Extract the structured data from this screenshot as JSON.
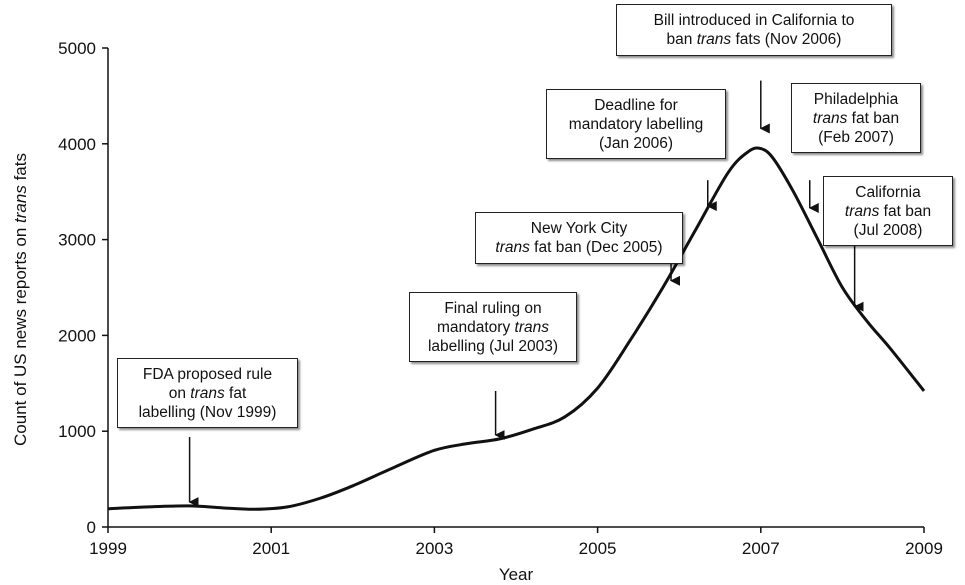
{
  "chart_data": {
    "type": "line",
    "xlabel": "Year",
    "ylabel_parts": [
      "Count of US news reports on ",
      "trans",
      " fats"
    ],
    "xlim": [
      1999,
      2009
    ],
    "ylim": [
      0,
      5000
    ],
    "x_ticks": [
      1999,
      2001,
      2003,
      2005,
      2007,
      2009
    ],
    "y_ticks": [
      0,
      1000,
      2000,
      3000,
      4000,
      5000
    ],
    "grid": false,
    "legend": "none",
    "line_color": "#111111",
    "series": [
      {
        "x": [
          1999,
          1999.5,
          2000,
          2000.4,
          2000.8,
          2001.2,
          2001.6,
          2002,
          2002.5,
          2003,
          2003.4,
          2003.8,
          2004.2,
          2004.6,
          2005,
          2005.4,
          2005.8,
          2006.2,
          2006.6,
          2006.85,
          2007,
          2007.15,
          2007.4,
          2007.7,
          2008,
          2008.3,
          2008.6,
          2009
        ],
        "y": [
          190,
          210,
          220,
          200,
          185,
          210,
          300,
          430,
          620,
          800,
          870,
          920,
          1020,
          1150,
          1450,
          1950,
          2500,
          3100,
          3700,
          3920,
          3950,
          3850,
          3500,
          3000,
          2500,
          2150,
          1850,
          1420
        ]
      }
    ],
    "annotations": [
      {
        "id": "fda-1999",
        "lines": [
          [
            {
              "t": "FDA proposed rule"
            }
          ],
          [
            {
              "t": "on "
            },
            {
              "t": "trans",
              "i": true
            },
            {
              "t": " fat"
            }
          ],
          [
            {
              "t": "labelling (Nov 1999)"
            }
          ]
        ],
        "arrow_x": 2000.0,
        "arrow_top_y": 940,
        "arrow_tip_y": 260
      },
      {
        "id": "final-2003",
        "lines": [
          [
            {
              "t": "Final ruling on"
            }
          ],
          [
            {
              "t": "mandatory "
            },
            {
              "t": "trans",
              "i": true
            }
          ],
          [
            {
              "t": "labelling (Jul 2003)"
            }
          ]
        ],
        "arrow_x": 2003.75,
        "arrow_top_y": 1420,
        "arrow_tip_y": 960
      },
      {
        "id": "nyc-2005",
        "lines": [
          [
            {
              "t": "New York City"
            }
          ],
          [
            {
              "t": "trans",
              "i": true
            },
            {
              "t": " fat ban (Dec 2005)"
            }
          ]
        ],
        "arrow_x": 2005.9,
        "arrow_top_y": 2940,
        "arrow_tip_y": 2570
      },
      {
        "id": "deadline-2006",
        "lines": [
          [
            {
              "t": "Deadline for"
            }
          ],
          [
            {
              "t": "mandatory labelling"
            }
          ],
          [
            {
              "t": "(Jan 2006)"
            }
          ]
        ],
        "arrow_x": 2006.35,
        "arrow_top_y": 3620,
        "arrow_tip_y": 3350
      },
      {
        "id": "calbill-2006",
        "lines": [
          [
            {
              "t": "Bill introduced in California to"
            }
          ],
          [
            {
              "t": "ban "
            },
            {
              "t": "trans",
              "i": true
            },
            {
              "t": " fats (Nov 2006)"
            }
          ]
        ],
        "arrow_x": 2007.0,
        "arrow_top_y": 4660,
        "arrow_tip_y": 4160
      },
      {
        "id": "philly-2007",
        "lines": [
          [
            {
              "t": "Philadelphia"
            }
          ],
          [
            {
              "t": "trans",
              "i": true
            },
            {
              "t": " fat ban"
            }
          ],
          [
            {
              "t": "(Feb 2007)"
            }
          ]
        ],
        "arrow_x": 2007.6,
        "arrow_top_y": 3620,
        "arrow_tip_y": 3330
      },
      {
        "id": "cal-2008",
        "lines": [
          [
            {
              "t": "California"
            }
          ],
          [
            {
              "t": "trans",
              "i": true
            },
            {
              "t": " fat ban"
            }
          ],
          [
            {
              "t": "(Jul 2008)"
            }
          ]
        ],
        "arrow_x": 2008.15,
        "arrow_top_y": 2970,
        "arrow_tip_y": 2300
      }
    ]
  }
}
